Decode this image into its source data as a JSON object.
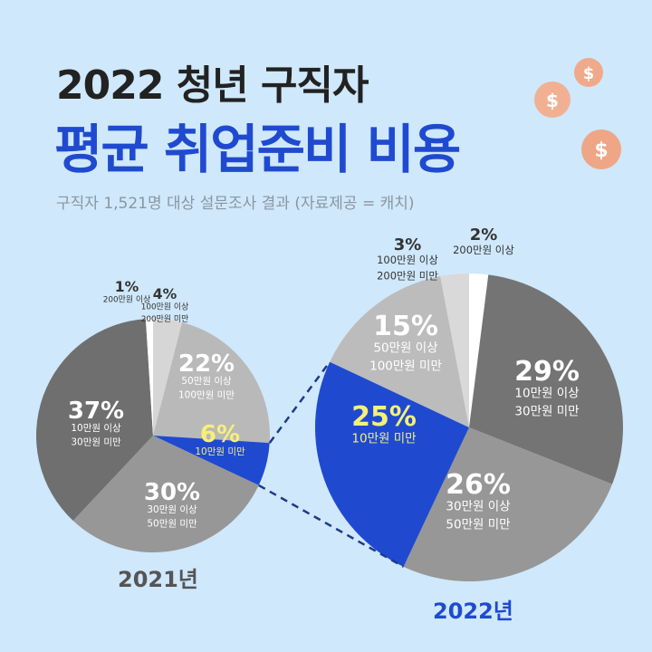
{
  "header": {
    "title_line1": "2022 청년 구직자",
    "title_line2": "평균 취업준비 비용",
    "subtitle": "구직자 1,521명 대상 설문조사 결과 (자료제공 = 캐치)"
  },
  "colors": {
    "background": "#cfe8fb",
    "accent": "#1f4ad0",
    "highlight_text": "#f5f07a"
  },
  "chart_data": [
    {
      "type": "pie",
      "title": "2021년",
      "unit": "%",
      "slices": [
        {
          "value": 4,
          "label": "4%",
          "desc": [
            "100만원 이상",
            "200만원 미만"
          ],
          "color": "#d6d6d6"
        },
        {
          "value": 22,
          "label": "22%",
          "desc": [
            "50만원 이상",
            "100만원 미만"
          ],
          "color": "#b9b9b9"
        },
        {
          "value": 6,
          "label": "6%",
          "desc": [
            "10만원 미만"
          ],
          "color": "#1f4ad0"
        },
        {
          "value": 30,
          "label": "30%",
          "desc": [
            "30만원 이상",
            "50만원 미만"
          ],
          "color": "#979797"
        },
        {
          "value": 37,
          "label": "37%",
          "desc": [
            "10만원 이상",
            "30만원 미만"
          ],
          "color": "#6f6f6f"
        },
        {
          "value": 1,
          "label": "1%",
          "desc": [
            "200만원 이상"
          ],
          "color": "#ffffff"
        }
      ]
    },
    {
      "type": "pie",
      "title": "2022년",
      "unit": "%",
      "slices": [
        {
          "value": 2,
          "label": "2%",
          "desc": [
            "200만원 이상"
          ],
          "color": "#ffffff"
        },
        {
          "value": 29,
          "label": "29%",
          "desc": [
            "10만원 이상",
            "30만원 미만"
          ],
          "color": "#747474"
        },
        {
          "value": 26,
          "label": "26%",
          "desc": [
            "30만원 이상",
            "50만원 미만"
          ],
          "color": "#979797"
        },
        {
          "value": 25,
          "label": "25%",
          "desc": [
            "10만원 미만"
          ],
          "color": "#1f4ad0"
        },
        {
          "value": 15,
          "label": "15%",
          "desc": [
            "50만원 이상",
            "100만원 미만"
          ],
          "color": "#bcbcbc"
        },
        {
          "value": 3,
          "label": "3%",
          "desc": [
            "100만원 이상",
            "200만원 미만"
          ],
          "color": "#d9d9d9"
        }
      ]
    }
  ]
}
